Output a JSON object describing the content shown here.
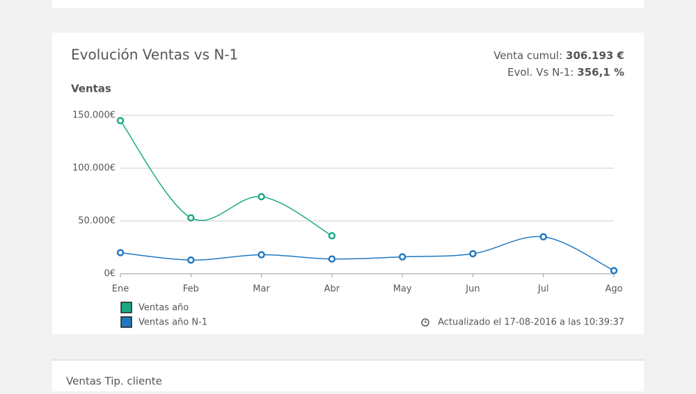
{
  "header": {
    "title": "Evolución Ventas vs N-1",
    "venta_label": "Venta cumul:",
    "venta_value": "306.193 €",
    "evol_label": "Evol. Vs N-1:",
    "evol_value": "356,1 %",
    "updated": "Actualizado el 17-08-2016 a las 10:39:37"
  },
  "chart_data": {
    "type": "line",
    "title": "Ventas",
    "categories": [
      "Ene",
      "Feb",
      "Mar",
      "Abr",
      "May",
      "Jun",
      "Jul",
      "Ago"
    ],
    "series": [
      {
        "name": "Ventas año",
        "color": "#1aa884",
        "values": [
          145000,
          53000,
          73000,
          36000,
          null,
          null,
          null,
          null
        ]
      },
      {
        "name": "Ventas año N-1",
        "color": "#1f78c1",
        "values": [
          20000,
          13000,
          18000,
          14000,
          16000,
          19000,
          35000,
          3000
        ]
      }
    ],
    "ylim": [
      0,
      150000
    ],
    "yticks": [
      {
        "value": 0,
        "label": "0€"
      },
      {
        "value": 50000,
        "label": "50.000€"
      },
      {
        "value": 100000,
        "label": "100.000€"
      },
      {
        "value": 150000,
        "label": "150.000€"
      }
    ],
    "grid": true
  },
  "next_card": {
    "title": "Ventas Tip. cliente"
  }
}
